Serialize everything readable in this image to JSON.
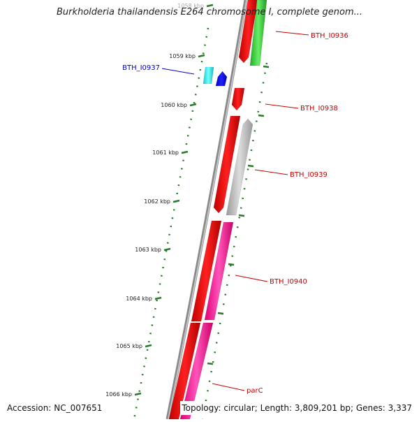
{
  "title": "Burkholderia thailandensis E264 chromosome I, complete genom...",
  "footer": {
    "accession": "Accession: NC_007651",
    "summary": "Topology: circular; Length: 3,809,201 bp; Genes: 3,337"
  },
  "ticks": [
    {
      "label": "1058 kbp",
      "faded": true
    },
    {
      "label": "1059 kbp"
    },
    {
      "label": "1060 kbp"
    },
    {
      "label": "1061 kbp"
    },
    {
      "label": "1062 kbp"
    },
    {
      "label": "1063 kbp"
    },
    {
      "label": "1064 kbp"
    },
    {
      "label": "1065 kbp"
    },
    {
      "label": "1066 kbp"
    }
  ],
  "genes": [
    {
      "label": "BTH_I0936",
      "label_color": "#cc0000"
    },
    {
      "label": "BTH_I0937",
      "label_color": "#0000cc"
    },
    {
      "label": "BTH_I0938",
      "label_color": "#cc0000"
    },
    {
      "label": "BTH_I0939",
      "label_color": "#cc0000"
    },
    {
      "label": "BTH_I0940",
      "label_color": "#cc0000"
    },
    {
      "label": "parC",
      "label_color": "#cc0000"
    }
  ],
  "colors": {
    "backbone": "#777777",
    "tick": "#2a7a2a",
    "gene_forward": "#ee0000",
    "gene_green": "#33cc33",
    "gene_gray": "#bbbbbb",
    "gene_pink": "#ff2299",
    "gene_cyan": "#22eeee",
    "gene_blue": "#0000ee"
  }
}
